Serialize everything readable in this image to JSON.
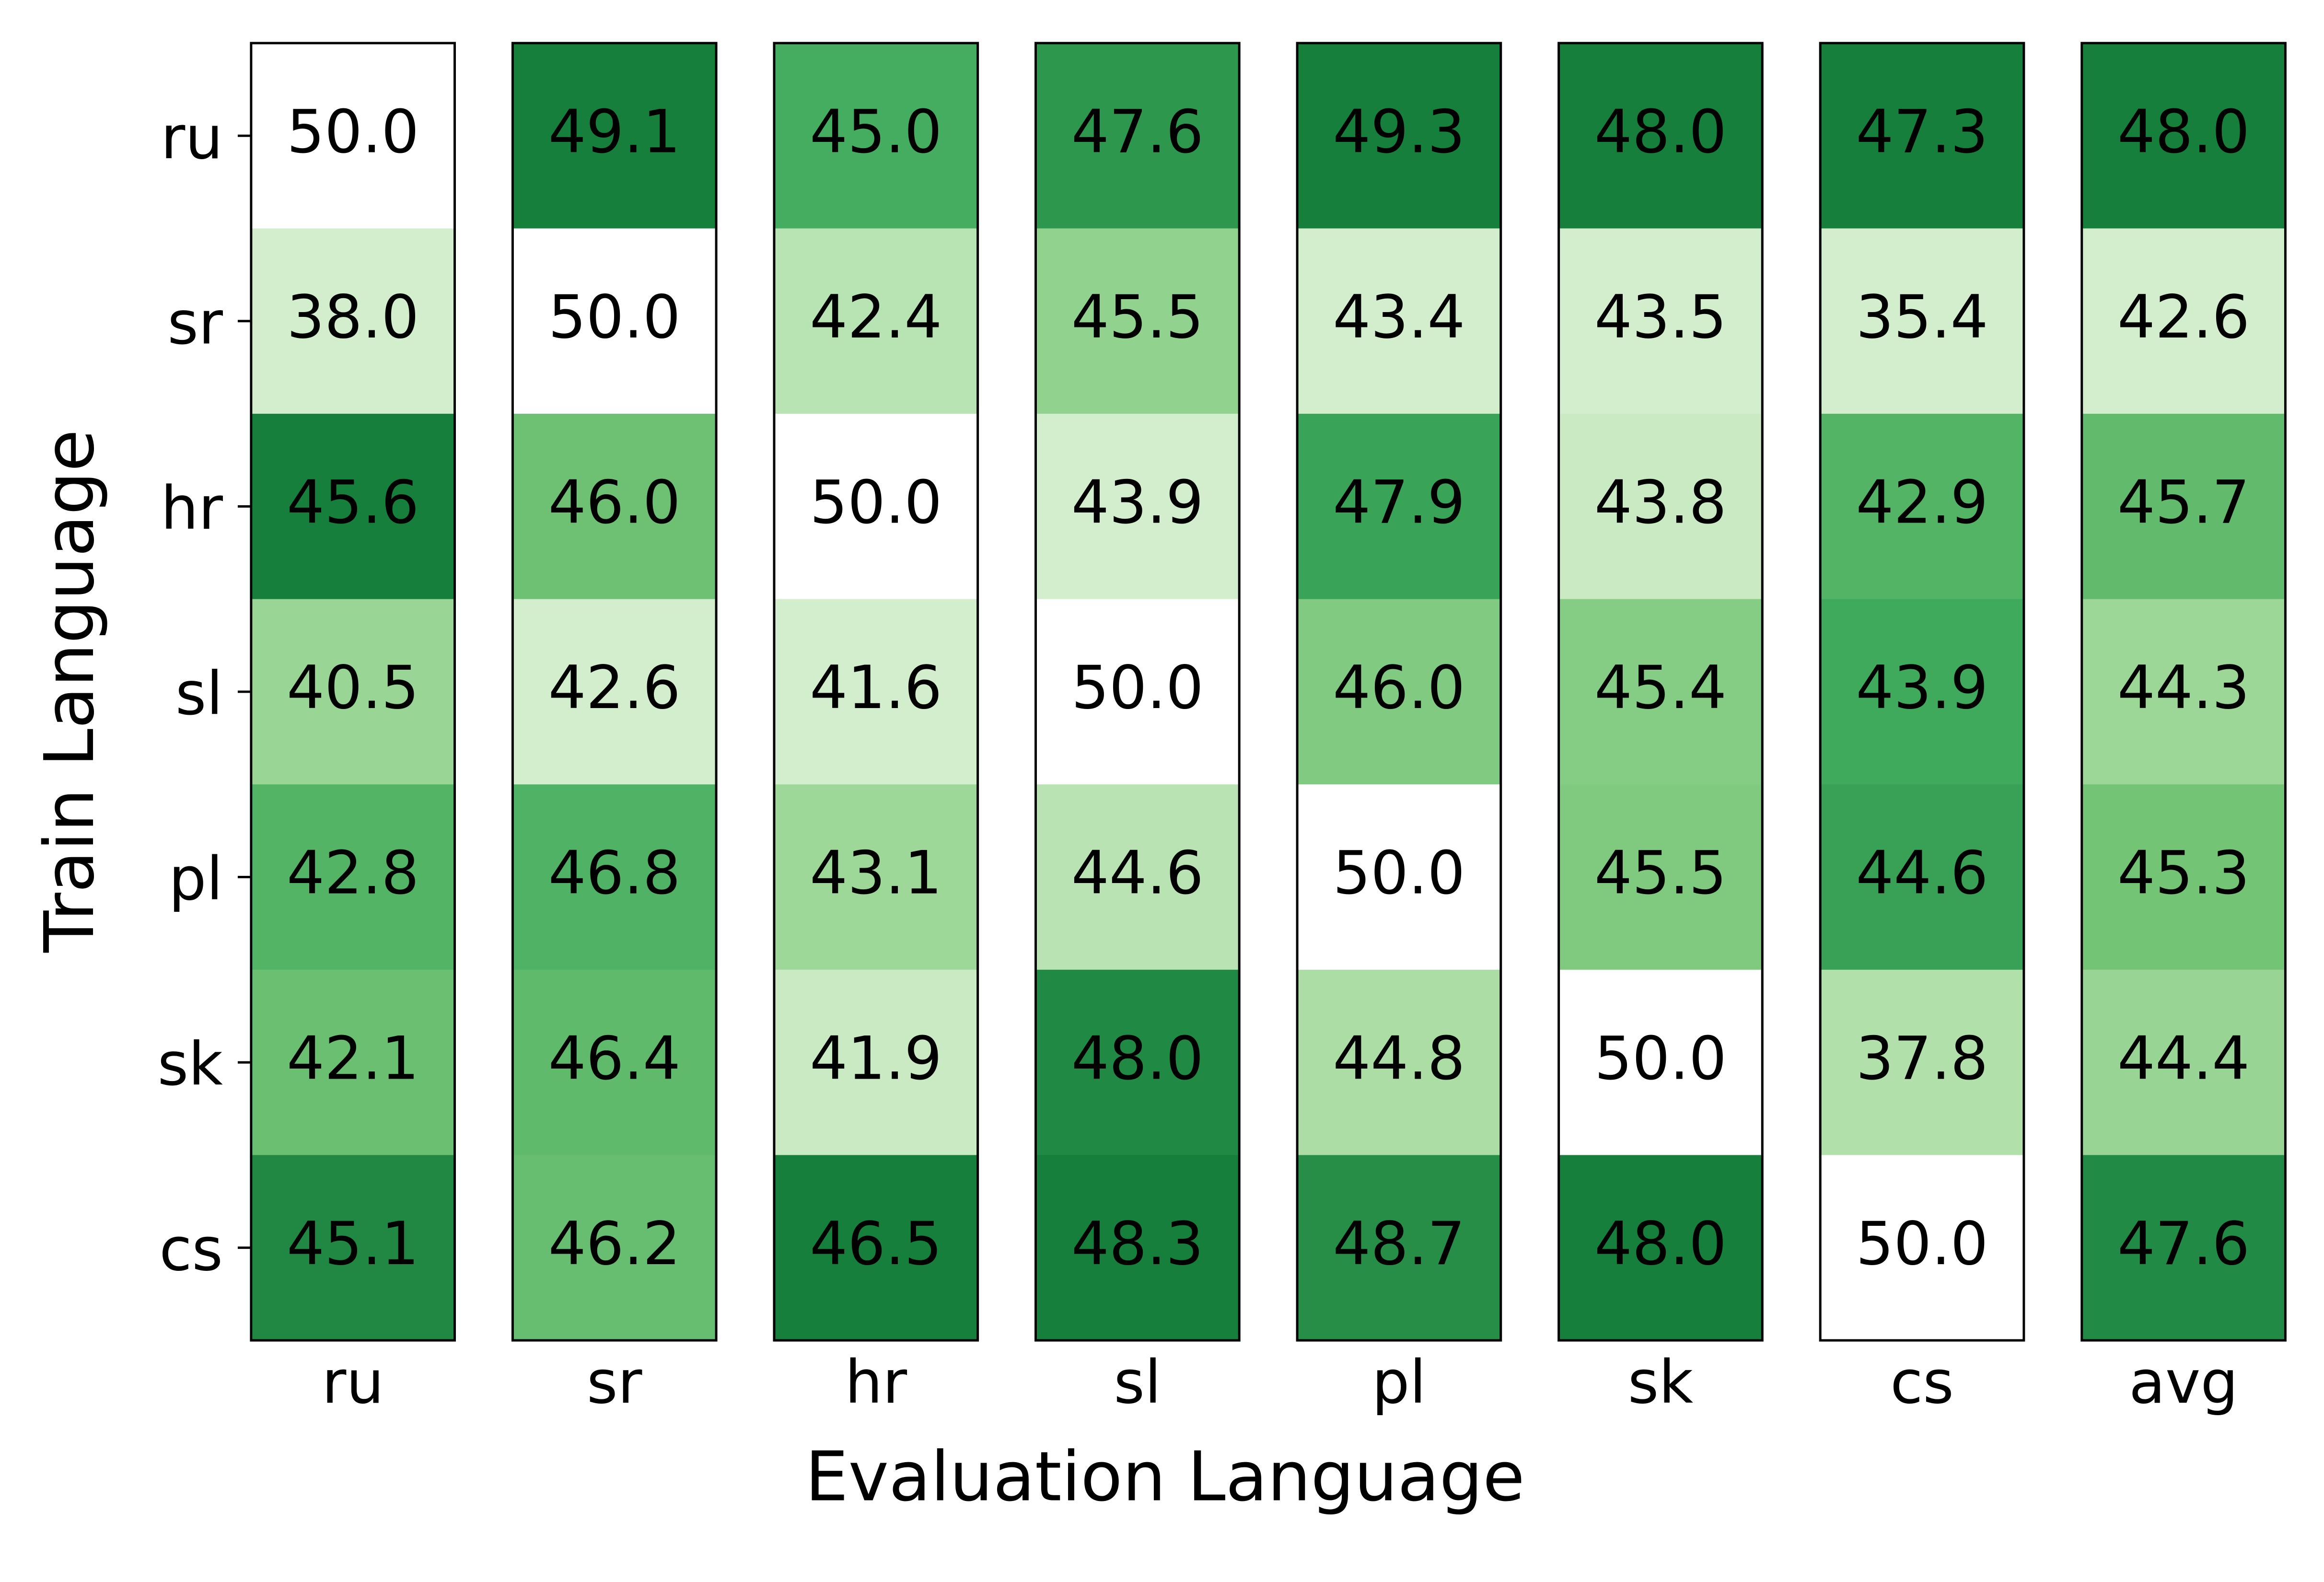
{
  "chart_data": {
    "type": "heatmap",
    "x_label": "Evaluation Language",
    "y_label": "Train Language",
    "columns": [
      "ru",
      "sr",
      "hr",
      "sl",
      "pl",
      "sk",
      "cs",
      "avg"
    ],
    "rows": [
      "ru",
      "sr",
      "hr",
      "sl",
      "pl",
      "sk",
      "cs"
    ],
    "values": [
      [
        50.0,
        49.1,
        45.0,
        47.6,
        49.3,
        48.0,
        47.3,
        48.0
      ],
      [
        38.0,
        50.0,
        42.4,
        45.5,
        43.4,
        43.5,
        35.4,
        42.6
      ],
      [
        45.6,
        46.0,
        50.0,
        43.9,
        47.9,
        43.8,
        42.9,
        45.7
      ],
      [
        40.5,
        42.6,
        41.6,
        50.0,
        46.0,
        45.4,
        43.9,
        44.3
      ],
      [
        42.8,
        46.8,
        43.1,
        44.6,
        50.0,
        45.5,
        44.6,
        45.3
      ],
      [
        42.1,
        46.4,
        41.9,
        48.0,
        44.8,
        50.0,
        37.8,
        44.4
      ],
      [
        45.1,
        46.2,
        46.5,
        48.3,
        48.7,
        48.0,
        50.0,
        47.6
      ]
    ],
    "value_labels": [
      [
        "50.0",
        "49.1",
        "45.0",
        "47.6",
        "49.3",
        "48.0",
        "47.3",
        "48.0"
      ],
      [
        "38.0",
        "50.0",
        "42.4",
        "45.5",
        "43.4",
        "43.5",
        "35.4",
        "42.6"
      ],
      [
        "45.6",
        "46.0",
        "50.0",
        "43.9",
        "47.9",
        "43.8",
        "42.9",
        "45.7"
      ],
      [
        "40.5",
        "42.6",
        "41.6",
        "50.0",
        "46.0",
        "45.4",
        "43.9",
        "44.3"
      ],
      [
        "42.8",
        "46.8",
        "43.1",
        "44.6",
        "50.0",
        "45.5",
        "44.6",
        "45.3"
      ],
      [
        "42.1",
        "46.4",
        "41.9",
        "48.0",
        "44.8",
        "50.0",
        "37.8",
        "44.4"
      ],
      [
        "45.1",
        "46.2",
        "46.5",
        "48.3",
        "48.7",
        "48.0",
        "50.0",
        "47.6"
      ]
    ],
    "colormap": "Greens",
    "normalize": "column",
    "mask_diagonal": true
  }
}
